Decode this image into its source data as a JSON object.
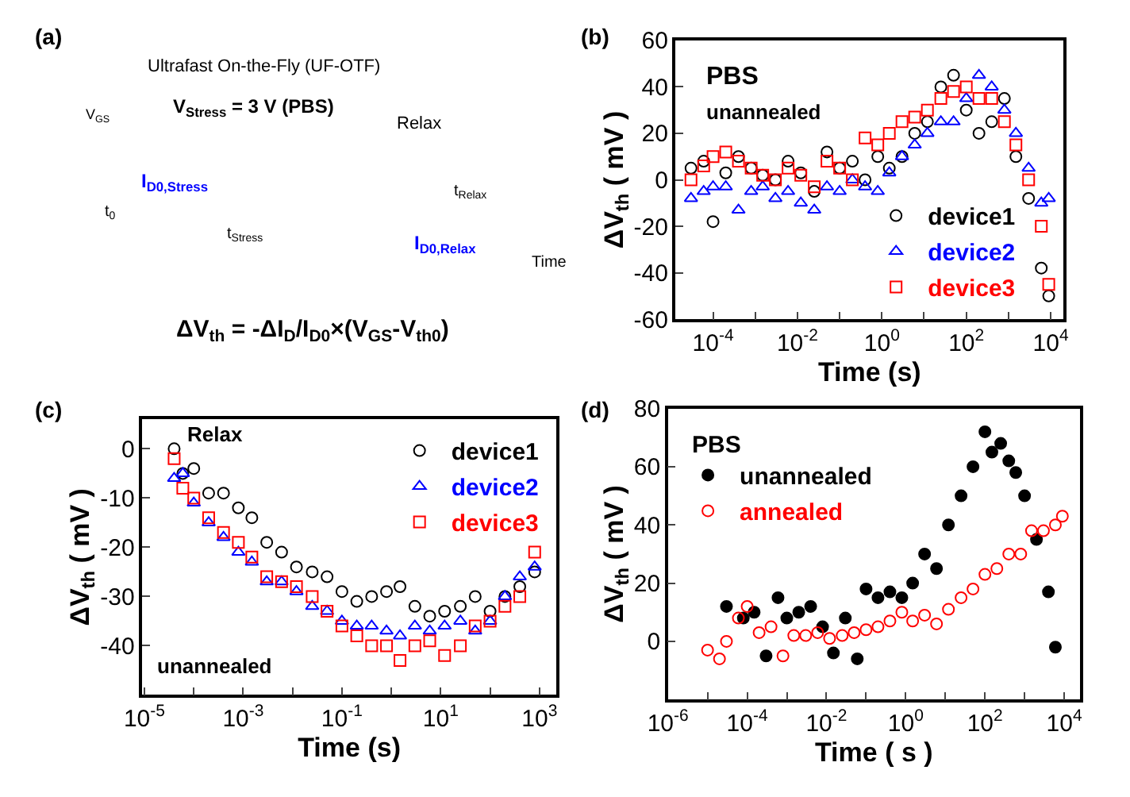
{
  "chart_data": [
    {
      "type": "other",
      "title": "(a)",
      "annotations": [
        "Ultrafast On-the-Fly (UF-OTF)",
        "V$_{Stress}$ = 3 V (PBS)",
        "V$_{GS}$",
        "Relax",
        "I$_{D0,Stress}$",
        "t$_{Relax}$",
        "t$_{0}$",
        "t$_{Stress}$",
        "I$_{D0,Relax}$",
        "Time",
        "ΔV$_{th}$ = -ΔI$_{D}$/I$_{D0}$×(V$_{GS}$-V$_{th0}$)"
      ]
    },
    {
      "type": "scatter",
      "title": "(b)",
      "xlabel": "Time (s)",
      "ylabel": "ΔV$_{th}$ ( mV )",
      "log": "x",
      "xlim": [
        1.3e-05,
        20000
      ],
      "ylim": [
        -60,
        60
      ],
      "xticks": [
        {
          "value": 0.0001,
          "label": "10$^{-4}$"
        },
        {
          "value": 0.001,
          "label": null
        },
        {
          "value": 0.01,
          "label": "10$^{-2}$"
        },
        {
          "value": 0.1,
          "label": null
        },
        {
          "value": 1,
          "label": "10$^{0}$"
        },
        {
          "value": 10,
          "label": null
        },
        {
          "value": 100,
          "label": "10$^{2}$"
        },
        {
          "value": 1000,
          "label": null
        },
        {
          "value": 10000,
          "label": "10$^{4}$"
        }
      ],
      "yticks": [
        -60,
        -40,
        -20,
        0,
        20,
        40,
        60
      ],
      "legend": "bottom right",
      "annotations": [
        "PBS",
        "unannealed"
      ],
      "x": [
        3e-05,
        6e-05,
        0.0001,
        0.0002,
        0.0004,
        0.0008,
        0.0015,
        0.003,
        0.006,
        0.012,
        0.025,
        0.05,
        0.1,
        0.2,
        0.4,
        0.8,
        1.5,
        3,
        6,
        12,
        25,
        50,
        100,
        200,
        400,
        800,
        1500,
        3000,
        6000,
        9000
      ],
      "series": [
        {
          "name": "device1",
          "color": "#000000",
          "marker": "circle",
          "values": [
            5,
            8,
            -18,
            3,
            10,
            5,
            2,
            0,
            8,
            3,
            -5,
            12,
            5,
            8,
            0,
            10,
            5,
            10,
            20,
            25,
            40,
            45,
            30,
            20,
            25,
            35,
            10,
            -8,
            -38,
            -50
          ]
        },
        {
          "name": "device2",
          "color": "#0000ff",
          "marker": "triangle",
          "values": [
            -8,
            -5,
            -3,
            -3,
            -13,
            -5,
            -3,
            -8,
            -5,
            -10,
            -13,
            -3,
            -5,
            0,
            -3,
            -5,
            3,
            10,
            15,
            20,
            25,
            25,
            35,
            45,
            40,
            30,
            20,
            5,
            -10,
            -8
          ]
        },
        {
          "name": "device3",
          "color": "#ff0000",
          "marker": "square",
          "values": [
            0,
            6,
            10,
            12,
            8,
            5,
            2,
            0,
            5,
            2,
            -3,
            8,
            5,
            0,
            18,
            15,
            20,
            25,
            27,
            30,
            35,
            38,
            40,
            35,
            35,
            25,
            15,
            0,
            -20,
            -45
          ]
        }
      ]
    },
    {
      "type": "scatter",
      "title": "(c)",
      "xlabel": "Time (s)",
      "ylabel": "ΔV$_{th}$ ( mV )",
      "log": "x",
      "xlim": [
        9e-06,
        2200
      ],
      "ylim": [
        -50,
        6
      ],
      "xticks": [
        {
          "value": 1e-05,
          "label": "10$^{-5}$"
        },
        {
          "value": 0.0001,
          "label": null
        },
        {
          "value": 0.001,
          "label": "10$^{-3}$"
        },
        {
          "value": 0.01,
          "label": null
        },
        {
          "value": 0.1,
          "label": "10$^{-1}$"
        },
        {
          "value": 1,
          "label": null
        },
        {
          "value": 10,
          "label": "10$^{1}$"
        },
        {
          "value": 100,
          "label": null
        },
        {
          "value": 1000,
          "label": "10$^{3}$"
        }
      ],
      "yticks": [
        -40,
        -30,
        -20,
        -10,
        0
      ],
      "legend": "top right",
      "annotations": [
        "Relax",
        "unannealed"
      ],
      "x": [
        4e-05,
        6e-05,
        0.0001,
        0.0002,
        0.0004,
        0.0008,
        0.0015,
        0.003,
        0.006,
        0.012,
        0.025,
        0.05,
        0.1,
        0.2,
        0.4,
        0.8,
        1.5,
        3,
        6,
        12,
        25,
        50,
        100,
        200,
        400,
        800
      ],
      "series": [
        {
          "name": "device1",
          "color": "#000000",
          "marker": "circle",
          "values": [
            0,
            -5,
            -4,
            -9,
            -9,
            -12,
            -14,
            -19,
            -21,
            -24,
            -25,
            -26,
            -29,
            -31,
            -30,
            -29,
            -28,
            -32,
            -34,
            -33,
            -32,
            -30,
            -33,
            -30,
            -28,
            -25
          ]
        },
        {
          "name": "device2",
          "color": "#0000ff",
          "marker": "triangle",
          "values": [
            -6,
            -5,
            -11,
            -15,
            -18,
            -21,
            -23,
            -27,
            -27,
            -29,
            -32,
            -33,
            -35,
            -36,
            -36,
            -37,
            -38,
            -36,
            -37,
            -36,
            -35,
            -37,
            -35,
            -30,
            -26,
            -24
          ]
        },
        {
          "name": "device3",
          "color": "#ff0000",
          "marker": "square",
          "values": [
            -2,
            -8,
            -10,
            -14,
            -17,
            -19,
            -22,
            -26,
            -27,
            -28,
            -30,
            -33,
            -36,
            -38,
            -40,
            -40,
            -43,
            -40,
            -39,
            -42,
            -40,
            -36,
            -35,
            -32,
            -30,
            -21
          ]
        }
      ]
    },
    {
      "type": "scatter",
      "title": "(d)",
      "xlabel": "Time ( s )",
      "ylabel": "ΔV$_{th}$ ( mV )",
      "log": "x",
      "xlim": [
        1e-06,
        25000
      ],
      "ylim": [
        -20,
        80
      ],
      "xticks": [
        {
          "value": 1e-06,
          "label": "10$^{-6}$"
        },
        {
          "value": 1e-05,
          "label": null
        },
        {
          "value": 0.0001,
          "label": "10$^{-4}$"
        },
        {
          "value": 0.001,
          "label": null
        },
        {
          "value": 0.01,
          "label": "10$^{-2}$"
        },
        {
          "value": 0.1,
          "label": null
        },
        {
          "value": 1,
          "label": "10$^{0}$"
        },
        {
          "value": 10,
          "label": null
        },
        {
          "value": 100,
          "label": "10$^{2}$"
        },
        {
          "value": 1000,
          "label": null
        },
        {
          "value": 10000,
          "label": "10$^{4}$"
        }
      ],
      "yticks": [
        0,
        20,
        40,
        60,
        80
      ],
      "legend": "top left",
      "annotations": [
        "PBS"
      ],
      "series": [
        {
          "name": "unannealed",
          "color": "#000000",
          "marker": "circle",
          "x": [
            3e-05,
            8e-05,
            0.00015,
            0.0003,
            0.0006,
            0.001,
            0.002,
            0.004,
            0.008,
            0.015,
            0.03,
            0.06,
            0.1,
            0.2,
            0.4,
            0.8,
            1.5,
            3,
            6,
            12,
            25,
            50,
            100,
            150,
            250,
            400,
            600,
            1000,
            2000,
            4000,
            6000
          ],
          "values": [
            12,
            8,
            10,
            -5,
            15,
            8,
            10,
            12,
            5,
            -4,
            8,
            -6,
            18,
            15,
            17,
            15,
            20,
            30,
            25,
            40,
            50,
            60,
            72,
            65,
            68,
            62,
            58,
            50,
            35,
            17,
            -2
          ]
        },
        {
          "name": "annealed",
          "color": "#ff0000",
          "marker": "circle",
          "x": [
            1e-05,
            2e-05,
            3e-05,
            6e-05,
            0.0001,
            0.0002,
            0.0004,
            0.0008,
            0.0015,
            0.003,
            0.006,
            0.012,
            0.025,
            0.05,
            0.1,
            0.2,
            0.4,
            0.8,
            1.5,
            3,
            6,
            12,
            25,
            50,
            100,
            200,
            400,
            800,
            1500,
            3000,
            6000,
            9000
          ],
          "values": [
            -3,
            -6,
            0,
            8,
            12,
            3,
            5,
            -5,
            2,
            2,
            3,
            1,
            2,
            3,
            4,
            5,
            7,
            10,
            7,
            9,
            6,
            11,
            15,
            18,
            23,
            25,
            30,
            30,
            38,
            38,
            40,
            43
          ]
        }
      ]
    }
  ]
}
